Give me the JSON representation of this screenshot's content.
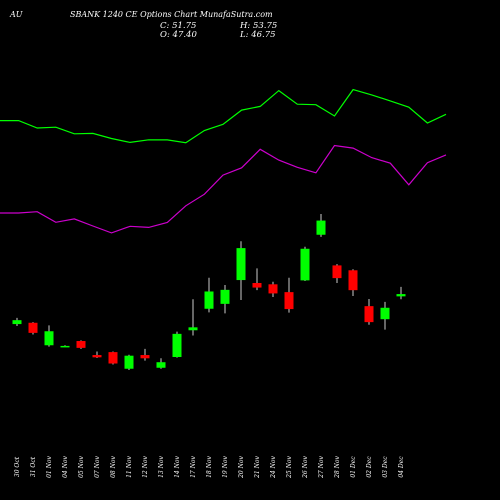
{
  "header": {
    "ticker": "AU",
    "title": "SBANK 1240  CE Options Chart MunafaSutra.com"
  },
  "ohlc": {
    "close_label": "C: 51.75",
    "open_label": "O: 47.40",
    "high_label": "H: 53.75",
    "low_label": "L: 46.75"
  },
  "colors": {
    "background": "#000000",
    "up": "#00ff00",
    "down": "#ff0000",
    "wick": "#ffffff",
    "line_upper": "#00ff00",
    "line_lower": "#cc00cc",
    "text": "#ffffff"
  },
  "chart_data": {
    "type": "candlestick",
    "x": [
      "30 Oct",
      "31 Oct",
      "01 Nov",
      "04 Nov",
      "05 Nov",
      "07 Nov",
      "08 Nov",
      "11 Nov",
      "12 Nov",
      "13 Nov",
      "14 Nov",
      "17 Nov",
      "18 Nov",
      "19 Nov",
      "20 Nov",
      "21 Nov",
      "24 Nov",
      "25 Nov",
      "26 Nov",
      "27 Nov",
      "28 Nov",
      "01 Dec",
      "02 Dec",
      "03 Dec",
      "04 Dec"
    ],
    "candles": [
      {
        "o": 20.0,
        "h": 21.9,
        "l": 19.4,
        "c": 21.2
      },
      {
        "o": 20.4,
        "h": 20.6,
        "l": 16.8,
        "c": 17.3
      },
      {
        "o": 13.5,
        "h": 19.6,
        "l": 13.1,
        "c": 17.8
      },
      {
        "o": 13.3,
        "h": 13.5,
        "l": 13.1,
        "c": 13.3
      },
      {
        "o": 14.8,
        "h": 15.0,
        "l": 12.4,
        "c": 12.7
      },
      {
        "o": 10.5,
        "h": 11.6,
        "l": 9.6,
        "c": 9.8
      },
      {
        "o": 11.4,
        "h": 11.6,
        "l": 7.6,
        "c": 7.9
      },
      {
        "o": 6.3,
        "h": 10.6,
        "l": 5.9,
        "c": 10.3
      },
      {
        "o": 10.5,
        "h": 12.4,
        "l": 8.8,
        "c": 9.5
      },
      {
        "o": 6.6,
        "h": 9.5,
        "l": 6.3,
        "c": 8.3
      },
      {
        "o": 9.9,
        "h": 17.7,
        "l": 9.7,
        "c": 17.0
      },
      {
        "o": 18.1,
        "h": 27.6,
        "l": 16.5,
        "c": 19.0
      },
      {
        "o": 24.7,
        "h": 34.2,
        "l": 23.6,
        "c": 30.0
      },
      {
        "o": 26.2,
        "h": 32.0,
        "l": 23.3,
        "c": 30.5
      },
      {
        "o": 33.5,
        "h": 45.4,
        "l": 27.4,
        "c": 43.3
      },
      {
        "o": 32.6,
        "h": 37.1,
        "l": 30.4,
        "c": 31.2
      },
      {
        "o": 32.2,
        "h": 33.0,
        "l": 28.3,
        "c": 29.4
      },
      {
        "o": 29.8,
        "h": 34.2,
        "l": 23.5,
        "c": 24.6
      },
      {
        "o": 33.4,
        "h": 43.7,
        "l": 33.2,
        "c": 43.1
      },
      {
        "o": 47.4,
        "h": 53.75,
        "l": 46.75,
        "c": 51.75
      }
    ],
    "candles_tail": [
      {
        "o": 38.0,
        "h": 38.4,
        "l": 32.6,
        "c": 34.1
      },
      {
        "o": 36.5,
        "h": 36.8,
        "l": 28.6,
        "c": 30.4
      },
      {
        "o": 25.5,
        "h": 27.7,
        "l": 19.8,
        "c": 20.6
      },
      {
        "o": 21.5,
        "h": 26.8,
        "l": 18.3,
        "c": 25.0
      },
      {
        "o": 28.5,
        "h": 31.4,
        "l": 27.6,
        "c": 29.2
      }
    ],
    "series": [
      {
        "values": [
          120.6,
          120.6,
          128.0,
          127.2,
          133.8,
          133.4,
          138.5,
          142.4,
          139.8,
          139.9,
          142.7,
          130.5,
          124.3,
          110.1,
          106.4,
          90.6,
          104.2,
          104.7,
          116.0,
          89.6,
          94.9,
          100.9,
          107.2,
          123.0,
          114.3
        ]
      },
      {
        "values": [
          213.0,
          213.0,
          211.7,
          222.3,
          218.9,
          226.0,
          232.9,
          226.3,
          227.4,
          222.4,
          205.8,
          194.2,
          175.1,
          167.8,
          149.3,
          160.1,
          167.3,
          172.8,
          145.5,
          148.1,
          157.6,
          163.2,
          184.8,
          162.7,
          154.9
        ]
      }
    ],
    "title": "SBANK 1240  CE Options Chart MunafaSutra.com",
    "xlabel": "",
    "ylabel": ""
  }
}
